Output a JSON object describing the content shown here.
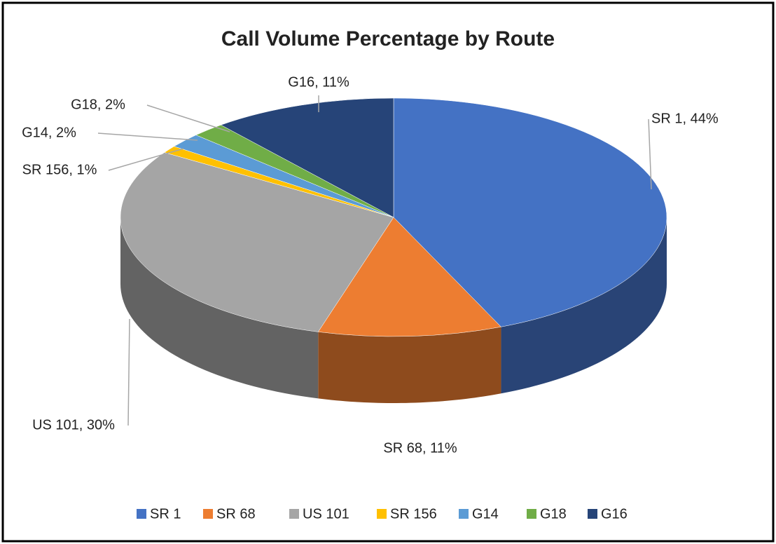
{
  "chart_data": {
    "type": "pie",
    "title": "Call Volume Percentage by Route",
    "categories": [
      "SR 1",
      "SR 68",
      "US 101",
      "SR 156",
      "G14",
      "G18",
      "G16"
    ],
    "values": [
      44,
      11,
      30,
      1,
      2,
      2,
      11
    ],
    "value_labels": [
      "SR 1, 44%",
      "SR 68, 11%",
      "US 101, 30%",
      "SR 156, 1%",
      "G14, 2%",
      "G18, 2%",
      "G16, 11%"
    ],
    "colors": [
      "#4472c4",
      "#ed7d31",
      "#a5a5a5",
      "#ffc000",
      "#5b9bd5",
      "#70ad47",
      "#264478"
    ],
    "legend": "bottom"
  }
}
